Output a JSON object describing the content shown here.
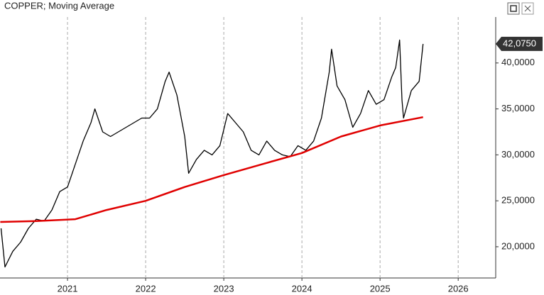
{
  "chart_data": {
    "type": "line",
    "title": "COPPER; Moving Average",
    "xlim": [
      2020.136,
      2026.48
    ],
    "xticks": [
      2021,
      2022,
      2023,
      2024,
      2025,
      2026
    ],
    "ylim": [
      16600,
      45000
    ],
    "yticks": [
      {
        "value": 20000,
        "label": "20,0000"
      },
      {
        "value": 25000,
        "label": "25,0000"
      },
      {
        "value": 30000,
        "label": "30,0000"
      },
      {
        "value": 35000,
        "label": "35,0000"
      },
      {
        "value": 40000,
        "label": "40,0000"
      }
    ],
    "grid": true,
    "last_label": {
      "value": 42075,
      "label": "42,0750"
    },
    "series": [
      {
        "color": "#000000",
        "x": [
          2020.15,
          2020.2,
          2020.3,
          2020.4,
          2020.5,
          2020.6,
          2020.7,
          2020.8,
          2020.9,
          2021.0,
          2021.1,
          2021.2,
          2021.3,
          2021.35,
          2021.45,
          2021.55,
          2021.65,
          2021.75,
          2021.85,
          2021.95,
          2022.05,
          2022.15,
          2022.25,
          2022.3,
          2022.4,
          2022.5,
          2022.55,
          2022.65,
          2022.75,
          2022.85,
          2022.95,
          2023.05,
          2023.15,
          2023.25,
          2023.35,
          2023.45,
          2023.55,
          2023.65,
          2023.75,
          2023.85,
          2023.95,
          2024.05,
          2024.15,
          2024.25,
          2024.35,
          2024.38,
          2024.45,
          2024.55,
          2024.65,
          2024.75,
          2024.85,
          2024.95,
          2025.05,
          2025.15,
          2025.2,
          2025.25,
          2025.28,
          2025.3,
          2025.4,
          2025.5,
          2025.55
        ],
        "values": [
          22000,
          17800,
          19500,
          20500,
          22000,
          23000,
          22800,
          24000,
          26000,
          26500,
          29000,
          31500,
          33500,
          35000,
          32500,
          32000,
          32500,
          33000,
          33500,
          34000,
          34000,
          35000,
          38000,
          39000,
          36500,
          32000,
          28000,
          29500,
          30500,
          30000,
          31000,
          34500,
          33500,
          32500,
          30500,
          30000,
          31500,
          30500,
          30000,
          29800,
          31000,
          30500,
          31500,
          34000,
          39000,
          41500,
          37500,
          36000,
          33000,
          34500,
          37000,
          35500,
          36000,
          38500,
          39500,
          42500,
          36000,
          34000,
          37000,
          38000,
          42075
        ]
      },
      {
        "color": "#e00000",
        "x": [
          2020.14,
          2020.6,
          2021.1,
          2021.5,
          2022.0,
          2022.5,
          2023.0,
          2023.5,
          2024.0,
          2024.5,
          2025.0,
          2025.55
        ],
        "values": [
          22700,
          22800,
          23000,
          24000,
          25000,
          26500,
          27800,
          29000,
          30200,
          32000,
          33200,
          34100
        ]
      }
    ]
  }
}
